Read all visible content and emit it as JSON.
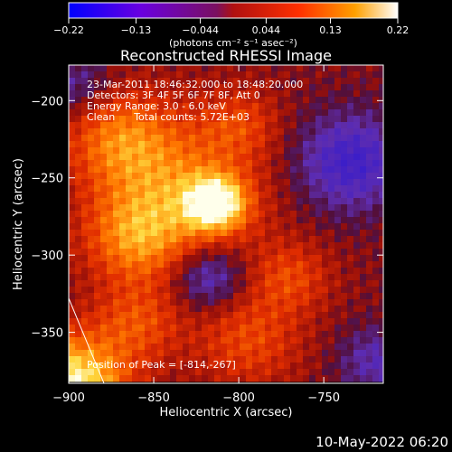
{
  "chart_data": {
    "type": "heatmap",
    "title": "Reconstructed RHESSI Image",
    "xlabel": "Heliocentric X (arcsec)",
    "ylabel": "Heliocentric Y (arcsec)",
    "xlim": [
      -900,
      -715
    ],
    "ylim": [
      -383,
      -177
    ],
    "x_ticks": [
      -900,
      -850,
      -800,
      -750
    ],
    "x_tick_labels": [
      "−900",
      "−850",
      "−800",
      "−750"
    ],
    "y_ticks": [
      -200,
      -250,
      -300,
      -350
    ],
    "y_tick_labels": [
      "−200",
      "−250",
      "−300",
      "−350"
    ],
    "colorbar": {
      "range": [
        -0.22,
        0.22
      ],
      "ticks": [
        -0.22,
        -0.13,
        -0.044,
        0.044,
        0.13,
        0.22
      ],
      "tick_labels": [
        "−0.22",
        "−0.13",
        "−0.044",
        "0.044",
        "0.13",
        "0.22"
      ],
      "units_text": "(photons cm⁻² s⁻¹ asec⁻²)",
      "colors": [
        "#0000ff",
        "#7a00d8",
        "#a01040",
        "#e81a00",
        "#ff8a00",
        "#ffffff"
      ]
    },
    "annotations": [
      "23-Mar-2011 18:46:32.000 to 18:48:20.000",
      "Detectors: 3F 4F 5F 6F 7F 8F, Att 0",
      "Energy Range: 3.0 - 6.0 keV",
      "Clean      Total counts: 5.72E+03"
    ],
    "peak_label": "Position of Peak = [-814,-267]",
    "peak_position": [
      -814,
      -267
    ],
    "timestamp": "10-May-2022 06:20"
  }
}
